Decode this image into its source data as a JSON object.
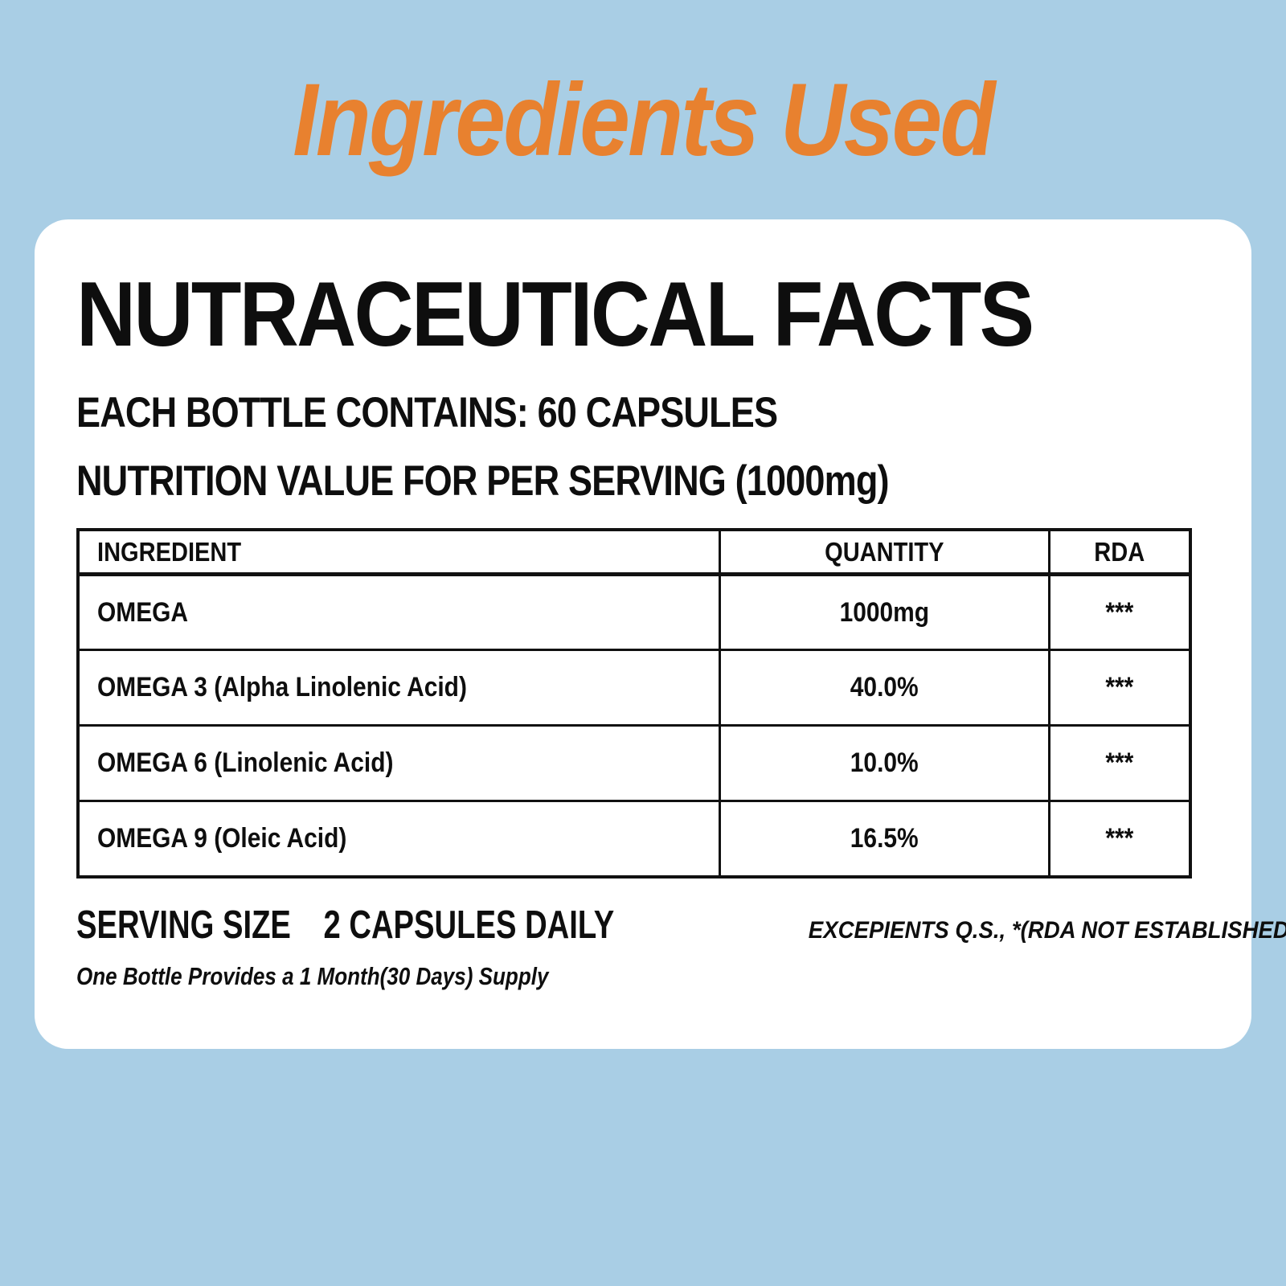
{
  "page": {
    "title": "Ingredients Used",
    "colors": {
      "background": "#A9CEE5",
      "accent_orange": "#E8812F",
      "card_background": "#FFFFFF",
      "text": "#0E0E0E",
      "table_border": "#111111"
    }
  },
  "card": {
    "heading": "NUTRACEUTICAL FACTS",
    "subheading1": "EACH BOTTLE CONTAINS: 60 CAPSULES",
    "subheading2": "NUTRITION VALUE FOR PER SERVING (1000mg)",
    "table": {
      "headers": [
        "INGREDIENT",
        "QUANTITY",
        "RDA"
      ],
      "rows": [
        {
          "ingredient": "OMEGA",
          "quantity": "1000mg",
          "rda": "***"
        },
        {
          "ingredient": "OMEGA 3 (Alpha Linolenic Acid)",
          "quantity": "40.0%",
          "rda": "***"
        },
        {
          "ingredient": "OMEGA 6 (Linolenic Acid)",
          "quantity": "10.0%",
          "rda": "***"
        },
        {
          "ingredient": "OMEGA 9 (Oleic Acid)",
          "quantity": "16.5%",
          "rda": "***"
        }
      ]
    },
    "footer": {
      "serving_size_label": "SERVING SIZE",
      "serving_size_value": "2 CAPSULES DAILY",
      "excipients_note": "EXCEPIENTS Q.S., *(RDA NOT ESTABLISHED)",
      "supply_note": "One Bottle Provides a 1 Month(30 Days) Supply"
    }
  }
}
